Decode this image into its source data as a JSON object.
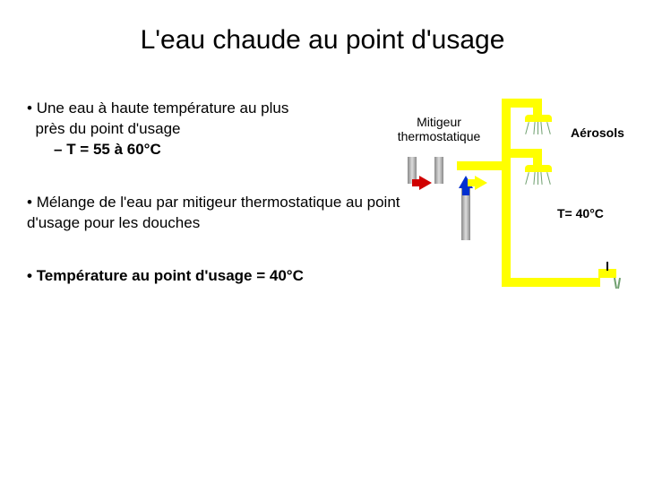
{
  "title": "L'eau chaude au point d'usage",
  "bullets": {
    "b1_line1": "Une eau à haute température au plus",
    "b1_line2": "près du point d'usage",
    "b1_sub": "T = 55 à 60°C",
    "b2": "Mélange de l'eau par mitigeur thermostatique au point d'usage pour les douches",
    "b3": "Température au point d'usage = 40°C"
  },
  "labels": {
    "mitigeur_l1": "Mitigeur",
    "mitigeur_l2": "thermostatique",
    "aerosols": "Aérosols",
    "temp": "T= 40°C"
  },
  "colors": {
    "pipe": "#ffff00",
    "hot": "#d00000",
    "cold": "#0030d0",
    "text": "#000000",
    "bg": "#ffffff"
  }
}
